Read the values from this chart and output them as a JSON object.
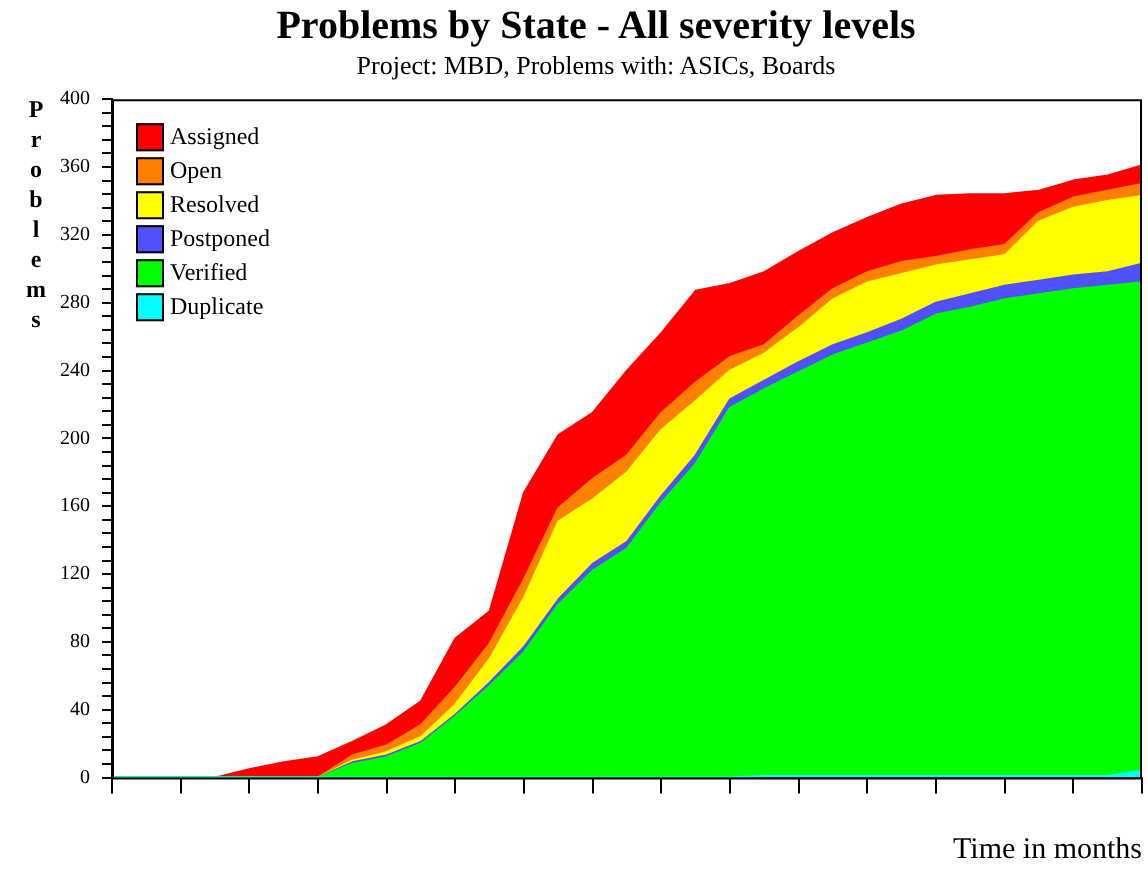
{
  "chart_data": {
    "type": "area",
    "stacked": true,
    "title": "Problems by State - All severity levels",
    "subtitle": "Project: MBD, Problems with: ASICs, Boards",
    "xlabel": "Time in months",
    "ylabel": "Problems",
    "legend": "top left",
    "grid": false,
    "marker": "none",
    "tick_labels": "y",
    "categories": [
      null,
      null,
      null,
      null,
      null,
      null,
      null,
      null,
      null,
      null,
      null,
      null,
      null,
      null,
      null,
      null,
      null,
      null,
      null,
      null,
      null,
      null,
      null,
      null,
      null,
      null,
      null,
      null,
      null,
      null,
      null
    ],
    "ylim": [
      0,
      400
    ],
    "yticks": [
      0,
      {
        "value": 8,
        "label": null
      },
      {
        "value": 16,
        "label": null
      },
      {
        "value": 24,
        "label": null
      },
      {
        "value": 32,
        "label": null
      },
      40,
      {
        "value": 48,
        "label": null
      },
      {
        "value": 56,
        "label": null
      },
      {
        "value": 64,
        "label": null
      },
      {
        "value": 72,
        "label": null
      },
      80,
      {
        "value": 88,
        "label": null
      },
      {
        "value": 96,
        "label": null
      },
      {
        "value": 104,
        "label": null
      },
      {
        "value": 112,
        "label": null
      },
      120,
      {
        "value": 128,
        "label": null
      },
      {
        "value": 136,
        "label": null
      },
      {
        "value": 144,
        "label": null
      },
      {
        "value": 152,
        "label": null
      },
      160,
      {
        "value": 168,
        "label": null
      },
      {
        "value": 176,
        "label": null
      },
      {
        "value": 184,
        "label": null
      },
      {
        "value": 192,
        "label": null
      },
      200,
      {
        "value": 208,
        "label": null
      },
      {
        "value": 216,
        "label": null
      },
      {
        "value": 224,
        "label": null
      },
      {
        "value": 232,
        "label": null
      },
      240,
      {
        "value": 248,
        "label": null
      },
      {
        "value": 256,
        "label": null
      },
      {
        "value": 264,
        "label": null
      },
      {
        "value": 272,
        "label": null
      },
      280,
      {
        "value": 288,
        "label": null
      },
      {
        "value": 296,
        "label": null
      },
      {
        "value": 304,
        "label": null
      },
      {
        "value": 312,
        "label": null
      },
      320,
      {
        "value": 328,
        "label": null
      },
      {
        "value": 336,
        "label": null
      },
      {
        "value": 344,
        "label": null
      },
      {
        "value": 352,
        "label": null
      },
      360,
      {
        "value": 368,
        "label": null
      },
      {
        "value": 376,
        "label": null
      },
      {
        "value": 384,
        "label": null
      },
      {
        "value": 392,
        "label": null
      },
      400
    ],
    "series": [
      {
        "name": "Duplicate",
        "color": "#00ffff",
        "values": [
          0,
          0,
          0,
          0,
          0,
          0,
          0,
          0,
          0,
          0,
          0,
          0,
          0,
          0,
          0,
          0,
          0,
          0,
          0,
          1,
          1,
          1,
          1,
          1,
          1,
          1,
          1,
          1,
          1,
          1,
          4
        ]
      },
      {
        "name": "Verified",
        "color": "#00ff00",
        "values": [
          0,
          0,
          0,
          0,
          0,
          0,
          0,
          8,
          12,
          20,
          36,
          54,
          74,
          102,
          122,
          135,
          162,
          185,
          218,
          228,
          238,
          248,
          255,
          262,
          272,
          276,
          281,
          284,
          287,
          289,
          288
        ]
      },
      {
        "name": "Postponed",
        "color": "#5050ff",
        "values": [
          0,
          0,
          0,
          0,
          0,
          0,
          0,
          1,
          1,
          1,
          1,
          2,
          3,
          3,
          4,
          4,
          4,
          5,
          5,
          5,
          6,
          6,
          6,
          7,
          7,
          8,
          8,
          8,
          8,
          8,
          11
        ]
      },
      {
        "name": "Resolved",
        "color": "#ffff00",
        "values": [
          0,
          0,
          0,
          0,
          0,
          0,
          0,
          1,
          2,
          3,
          6,
          14,
          29,
          46,
          38,
          41,
          39,
          32,
          17,
          16,
          20,
          27,
          30,
          27,
          22,
          20,
          18,
          35,
          40,
          42,
          40
        ]
      },
      {
        "name": "Open",
        "color": "#ff8000",
        "values": [
          0,
          0,
          0,
          0,
          0,
          0,
          0,
          3,
          4,
          7,
          10,
          9,
          11,
          8,
          12,
          10,
          10,
          11,
          8,
          5,
          7,
          6,
          6,
          7,
          5,
          6,
          6,
          5,
          6,
          6,
          7
        ]
      },
      {
        "name": "Assigned",
        "color": "#ff0000",
        "values": [
          0,
          0,
          0,
          0,
          5,
          9,
          12,
          8,
          12,
          14,
          29,
          19,
          51,
          43,
          39,
          50,
          47,
          54,
          43,
          43,
          38,
          33,
          32,
          34,
          36,
          33,
          30,
          13,
          10,
          9,
          11
        ]
      }
    ]
  }
}
